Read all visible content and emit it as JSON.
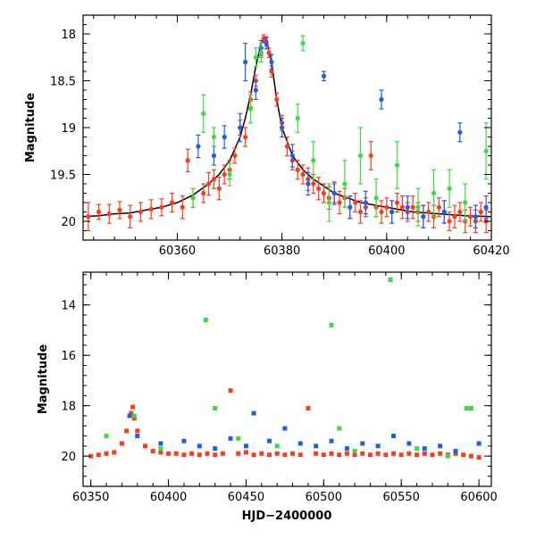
{
  "chart_data": [
    {
      "type": "scatter",
      "title": "",
      "xlabel": "",
      "ylabel": "Magnitude",
      "xlim": [
        60342,
        60420
      ],
      "ylim": [
        20.2,
        17.8
      ],
      "y_inverted": true,
      "x_ticks": [
        60360,
        60380,
        60400,
        60420
      ],
      "y_ticks": [
        18,
        18.5,
        19,
        19.5,
        20
      ],
      "x_tick_labels": [
        "60360",
        "60380",
        "60400",
        "60420"
      ],
      "y_tick_labels": [
        "18",
        "18.5",
        "19",
        "19.5",
        "20"
      ],
      "grid": false,
      "legend": "none",
      "series": [
        {
          "color": "#ff3b1f",
          "marker": "circle-with-errorbar",
          "points": [
            [
              60343,
              19.95,
              0.15
            ],
            [
              60345,
              19.9,
              0.08
            ],
            [
              60347,
              19.92,
              0.1
            ],
            [
              60349,
              19.88,
              0.09
            ],
            [
              60351,
              19.95,
              0.12
            ],
            [
              60353,
              19.9,
              0.1
            ],
            [
              60355,
              19.87,
              0.1
            ],
            [
              60357,
              19.85,
              0.09
            ],
            [
              60359,
              19.8,
              0.1
            ],
            [
              60361,
              19.85,
              0.12
            ],
            [
              60362,
              19.35,
              0.12
            ],
            [
              60363,
              19.75,
              0.1
            ],
            [
              60365,
              19.7,
              0.1
            ],
            [
              60366,
              19.6,
              0.12
            ],
            [
              60367,
              19.55,
              0.1
            ],
            [
              60368,
              19.65,
              0.12
            ],
            [
              60369,
              19.5,
              0.1
            ],
            [
              60370,
              19.45,
              0.1
            ],
            [
              60371,
              19.3,
              0.08
            ],
            [
              60372,
              19.0,
              0.08
            ],
            [
              60373,
              19.1,
              0.1
            ],
            [
              60374,
              18.7,
              0.08
            ],
            [
              60375,
              18.5,
              0.06
            ],
            [
              60376,
              18.2,
              0.05
            ],
            [
              60376.5,
              18.05,
              0.04
            ],
            [
              60377,
              18.08,
              0.05
            ],
            [
              60377.5,
              18.2,
              0.05
            ],
            [
              60378,
              18.4,
              0.06
            ],
            [
              60379,
              18.7,
              0.07
            ],
            [
              60380,
              18.95,
              0.08
            ],
            [
              60381,
              19.2,
              0.1
            ],
            [
              60382,
              19.35,
              0.1
            ],
            [
              60383,
              19.45,
              0.1
            ],
            [
              60384,
              19.5,
              0.1
            ],
            [
              60385,
              19.55,
              0.12
            ],
            [
              60386,
              19.6,
              0.1
            ],
            [
              60387,
              19.65,
              0.12
            ],
            [
              60388,
              19.7,
              0.1
            ],
            [
              60389,
              19.75,
              0.12
            ],
            [
              60390,
              19.7,
              0.1
            ],
            [
              60391,
              19.8,
              0.12
            ],
            [
              60392,
              19.75,
              0.1
            ],
            [
              60393,
              19.85,
              0.12
            ],
            [
              60394,
              19.8,
              0.1
            ],
            [
              60395,
              19.9,
              0.12
            ],
            [
              60396,
              19.85,
              0.1
            ],
            [
              60397,
              19.3,
              0.15
            ],
            [
              60398,
              19.85,
              0.1
            ],
            [
              60399,
              19.9,
              0.12
            ],
            [
              60400,
              19.85,
              0.1
            ],
            [
              60401,
              19.9,
              0.12
            ],
            [
              60402,
              19.8,
              0.1
            ],
            [
              60403,
              19.85,
              0.12
            ],
            [
              60404,
              19.9,
              0.1
            ],
            [
              60405,
              19.85,
              0.12
            ],
            [
              60406,
              19.9,
              0.1
            ],
            [
              60407,
              19.95,
              0.12
            ],
            [
              60408,
              19.9,
              0.1
            ],
            [
              60409,
              19.95,
              0.12
            ],
            [
              60410,
              19.85,
              0.1
            ],
            [
              60411,
              19.9,
              0.12
            ],
            [
              60412,
              20.0,
              0.1
            ],
            [
              60413,
              19.95,
              0.12
            ],
            [
              60414,
              19.9,
              0.1
            ],
            [
              60415,
              20.0,
              0.12
            ],
            [
              60416,
              19.95,
              0.1
            ],
            [
              60417,
              20.0,
              0.12
            ],
            [
              60418,
              19.9,
              0.1
            ],
            [
              60419,
              20.0,
              0.12
            ]
          ]
        },
        {
          "color": "#1f5fe6",
          "marker": "circle-with-errorbar",
          "points": [
            [
              60364,
              19.2,
              0.12
            ],
            [
              60367,
              19.3,
              0.1
            ],
            [
              60369,
              19.1,
              0.12
            ],
            [
              60372,
              19.0,
              0.15
            ],
            [
              60373,
              18.3,
              0.2
            ],
            [
              60375,
              18.6,
              0.1
            ],
            [
              60376,
              18.15,
              0.08
            ],
            [
              60377,
              18.1,
              0.06
            ],
            [
              60378,
              18.3,
              0.08
            ],
            [
              60380,
              19.0,
              0.1
            ],
            [
              60382,
              19.3,
              0.12
            ],
            [
              60385,
              19.6,
              0.12
            ],
            [
              60388,
              18.45,
              0.05
            ],
            [
              60390,
              19.7,
              0.12
            ],
            [
              60393,
              19.85,
              0.12
            ],
            [
              60396,
              19.8,
              0.12
            ],
            [
              60399,
              18.7,
              0.1
            ],
            [
              60401,
              19.9,
              0.12
            ],
            [
              60404,
              19.85,
              0.12
            ],
            [
              60407,
              19.95,
              0.12
            ],
            [
              60411,
              19.9,
              0.12
            ],
            [
              60414,
              19.05,
              0.1
            ],
            [
              60417,
              19.95,
              0.12
            ],
            [
              60419,
              19.85,
              0.12
            ]
          ]
        },
        {
          "color": "#3ddc3d",
          "marker": "circle-with-errorbar",
          "points": [
            [
              60363,
              19.75,
              0.1
            ],
            [
              60365,
              18.85,
              0.2
            ],
            [
              60367,
              19.1,
              0.1
            ],
            [
              60370,
              19.5,
              0.12
            ],
            [
              60374,
              18.8,
              0.15
            ],
            [
              60375,
              18.25,
              0.1
            ],
            [
              60376,
              18.2,
              0.1
            ],
            [
              60383,
              18.9,
              0.15
            ],
            [
              60384,
              18.1,
              0.08
            ],
            [
              60386,
              19.35,
              0.2
            ],
            [
              60389,
              19.8,
              0.2
            ],
            [
              60392,
              19.6,
              0.25
            ],
            [
              60395,
              19.3,
              0.3
            ],
            [
              60398,
              19.75,
              0.2
            ],
            [
              60402,
              19.4,
              0.25
            ],
            [
              60406,
              19.85,
              0.2
            ],
            [
              60409,
              19.7,
              0.25
            ],
            [
              60412,
              19.65,
              0.2
            ],
            [
              60415,
              19.8,
              0.2
            ],
            [
              60419,
              19.25,
              0.3
            ]
          ]
        }
      ],
      "model_curve": {
        "color": "#000000",
        "x": [
          60342,
          60345,
          60348,
          60351,
          60354,
          60357,
          60360,
          60363,
          60366,
          60368,
          60370,
          60372,
          60373,
          60374,
          60375,
          60376,
          60377,
          60378,
          60379,
          60380,
          60382,
          60384,
          60386,
          60390,
          60395,
          60400,
          60405,
          60410,
          60415,
          60420
        ],
        "y": [
          19.95,
          19.94,
          19.92,
          19.91,
          19.88,
          19.85,
          19.8,
          19.72,
          19.6,
          19.5,
          19.35,
          19.1,
          18.9,
          18.65,
          18.35,
          18.1,
          18.05,
          18.3,
          18.7,
          19.0,
          19.3,
          19.45,
          19.55,
          19.7,
          19.8,
          19.85,
          19.9,
          19.92,
          19.94,
          19.95
        ]
      }
    },
    {
      "type": "scatter",
      "title": "",
      "xlabel": "HJD−2400000",
      "ylabel": "Magnitude",
      "xlim": [
        60345,
        60608
      ],
      "ylim": [
        21.2,
        12.7
      ],
      "y_inverted": true,
      "x_ticks": [
        60350,
        60400,
        60450,
        60500,
        60550,
        60600
      ],
      "y_ticks": [
        14,
        16,
        18,
        20
      ],
      "x_tick_labels": [
        "60350",
        "60400",
        "60450",
        "60500",
        "60550",
        "60600"
      ],
      "y_tick_labels": [
        "14",
        "16",
        "18",
        "20"
      ],
      "grid": false,
      "legend": "none",
      "series": [
        {
          "color": "#ff3b1f",
          "marker": "square",
          "points": [
            [
              60350,
              20.0
            ],
            [
              60355,
              19.95
            ],
            [
              60360,
              19.9
            ],
            [
              60365,
              19.85
            ],
            [
              60370,
              19.5
            ],
            [
              60373,
              19.0
            ],
            [
              60376,
              18.3
            ],
            [
              60377,
              18.05
            ],
            [
              60378,
              18.5
            ],
            [
              60380,
              19.0
            ],
            [
              60385,
              19.6
            ],
            [
              60390,
              19.8
            ],
            [
              60395,
              19.85
            ],
            [
              60400,
              19.9
            ],
            [
              60405,
              19.9
            ],
            [
              60410,
              19.95
            ],
            [
              60415,
              19.9
            ],
            [
              60420,
              19.95
            ],
            [
              60425,
              19.9
            ],
            [
              60430,
              19.95
            ],
            [
              60435,
              19.9
            ],
            [
              60440,
              17.4
            ],
            [
              60445,
              19.9
            ],
            [
              60450,
              19.85
            ],
            [
              60455,
              19.95
            ],
            [
              60460,
              19.9
            ],
            [
              60465,
              19.95
            ],
            [
              60470,
              19.9
            ],
            [
              60475,
              19.95
            ],
            [
              60480,
              19.9
            ],
            [
              60485,
              19.95
            ],
            [
              60490,
              18.1
            ],
            [
              60495,
              19.9
            ],
            [
              60500,
              19.95
            ],
            [
              60505,
              19.9
            ],
            [
              60510,
              19.95
            ],
            [
              60515,
              19.9
            ],
            [
              60520,
              19.95
            ],
            [
              60525,
              19.9
            ],
            [
              60530,
              19.95
            ],
            [
              60535,
              19.9
            ],
            [
              60540,
              19.95
            ],
            [
              60545,
              19.9
            ],
            [
              60550,
              19.95
            ],
            [
              60555,
              19.9
            ],
            [
              60560,
              19.95
            ],
            [
              60565,
              19.9
            ],
            [
              60570,
              19.95
            ],
            [
              60575,
              19.9
            ],
            [
              60580,
              19.95
            ],
            [
              60585,
              19.9
            ],
            [
              60590,
              19.95
            ],
            [
              60595,
              20.0
            ],
            [
              60600,
              20.05
            ]
          ]
        },
        {
          "color": "#1f5fe6",
          "marker": "square",
          "points": [
            [
              60375,
              18.4
            ],
            [
              60380,
              19.2
            ],
            [
              60395,
              19.5
            ],
            [
              60410,
              19.4
            ],
            [
              60420,
              19.6
            ],
            [
              60430,
              19.7
            ],
            [
              60440,
              19.3
            ],
            [
              60450,
              19.6
            ],
            [
              60455,
              18.3
            ],
            [
              60465,
              19.4
            ],
            [
              60475,
              18.9
            ],
            [
              60485,
              19.5
            ],
            [
              60495,
              19.6
            ],
            [
              60505,
              19.4
            ],
            [
              60515,
              19.7
            ],
            [
              60525,
              19.5
            ],
            [
              60535,
              19.6
            ],
            [
              60545,
              19.2
            ],
            [
              60555,
              19.5
            ],
            [
              60565,
              19.7
            ],
            [
              60575,
              19.6
            ],
            [
              60585,
              19.8
            ],
            [
              60600,
              19.5
            ]
          ]
        },
        {
          "color": "#3ddc3d",
          "marker": "square",
          "points": [
            [
              60360,
              19.2
            ],
            [
              60378,
              18.4
            ],
            [
              60395,
              19.7
            ],
            [
              60424,
              14.6
            ],
            [
              60430,
              18.1
            ],
            [
              60445,
              19.3
            ],
            [
              60470,
              19.6
            ],
            [
              60505,
              14.8
            ],
            [
              60510,
              18.9
            ],
            [
              60520,
              19.8
            ],
            [
              60543,
              13.0
            ],
            [
              60560,
              19.7
            ],
            [
              60580,
              20.0
            ],
            [
              60592,
              18.1
            ],
            [
              60595,
              18.1
            ]
          ]
        }
      ]
    }
  ]
}
